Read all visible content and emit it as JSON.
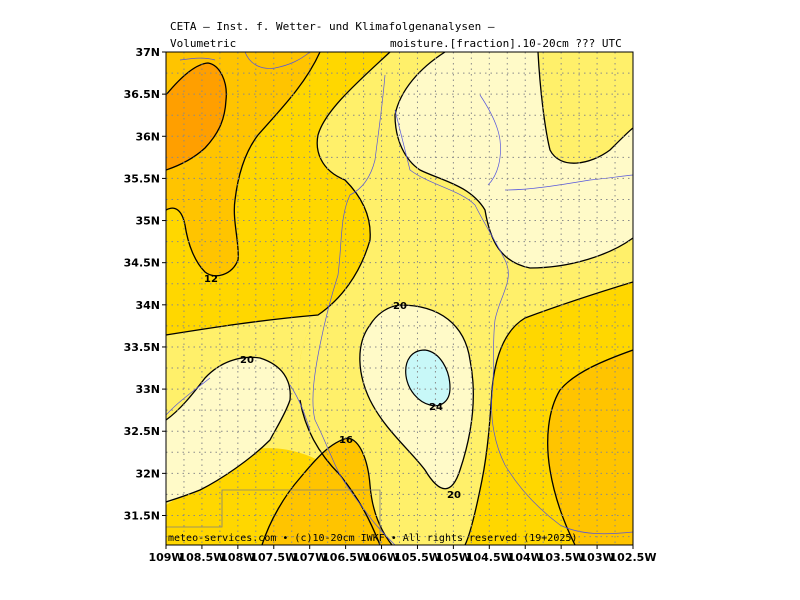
{
  "header": {
    "line1": "CETA – Inst. f. Wetter- und Klimafolgenanalysen –",
    "line2_left": "Volumetric",
    "line2_right": "moisture.[fraction].10-20cm ??? UTC"
  },
  "credit": "meteo-services.com • (c)10-20cm IWKF • All rights reserved (19+2025)",
  "axes": {
    "lon_labels": [
      "109W",
      "108.5W",
      "108W",
      "107.5W",
      "107W",
      "106.5W",
      "106W",
      "105.5W",
      "105W",
      "104.5W",
      "104W",
      "103.5W",
      "103W",
      "102.5W"
    ],
    "lat_labels": [
      "37N",
      "36.5N",
      "36N",
      "35.5N",
      "35N",
      "34.5N",
      "34N",
      "33.5N",
      "33N",
      "32.5N",
      "32N",
      "31.5N"
    ]
  },
  "contour_labels": [
    {
      "text": "12"
    },
    {
      "text": "20"
    },
    {
      "text": "20"
    },
    {
      "text": "16"
    },
    {
      "text": "24"
    },
    {
      "text": "20"
    }
  ],
  "colors": {
    "level_8_12": "#ffc400",
    "level_under_8": "#ff9f00",
    "level_12_16": "#ffd700",
    "level_16_20": "#fff06a",
    "level_20_24": "#fffac8",
    "level_over_24": "#c8f8f8",
    "rivers": "#5555dd",
    "borders": "#a0a0a0",
    "grid": "#888888"
  }
}
